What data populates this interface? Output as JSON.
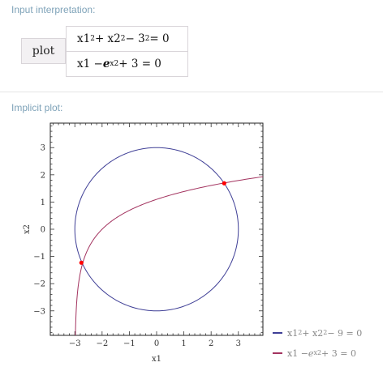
{
  "pods": {
    "input_title": "Input interpretation:",
    "plot_title": "Implicit plot:"
  },
  "input": {
    "plot_label": "plot",
    "eq1": {
      "a": "x1",
      "b": "2",
      "c": " + x2",
      "d": "2",
      "e": " − 3",
      "f": "2",
      "g": " = 0"
    },
    "eq2": {
      "a": "x1 − ",
      "b": "e",
      "c": "x2",
      "d": " + 3 = 0"
    }
  },
  "chart_data": {
    "type": "line",
    "xlabel": "x1",
    "ylabel": "x2",
    "xlim": [
      -3.9,
      3.9
    ],
    "ylim": [
      -3.9,
      3.9
    ],
    "xticks": [
      -3,
      -2,
      -1,
      0,
      1,
      2,
      3
    ],
    "yticks": [
      -3,
      -2,
      -1,
      0,
      1,
      2,
      3
    ],
    "xtick_labels": [
      "−3",
      "−2",
      "−1",
      "0",
      "1",
      "2",
      "3"
    ],
    "ytick_labels": [
      "−3",
      "−2",
      "−1",
      "0",
      "1",
      "2",
      "3"
    ],
    "grid": false,
    "legend_position": "bottom-right",
    "series": [
      {
        "name": "x1^2 + x2^2 − 9 = 0",
        "equation": "x1^2 + x2^2 = 9",
        "color": "#3f3f96"
      },
      {
        "name": "x1 − e^x2 + 3 = 0",
        "equation": "x1 = e^x2 − 3",
        "color": "#a3335f"
      }
    ],
    "intersections": [
      {
        "x1": 2.48,
        "x2": 1.69
      },
      {
        "x1": -2.76,
        "x2": -1.23
      }
    ],
    "intersection_color": "#ff0000"
  },
  "legend": {
    "item1": {
      "a": "x1",
      "b": "2",
      "c": " + x2",
      "d": "2",
      "e": " − 9 = 0"
    },
    "item2": {
      "a": "x1 − ",
      "b": "e",
      "c": "x2",
      "d": " + 3 = 0"
    }
  }
}
